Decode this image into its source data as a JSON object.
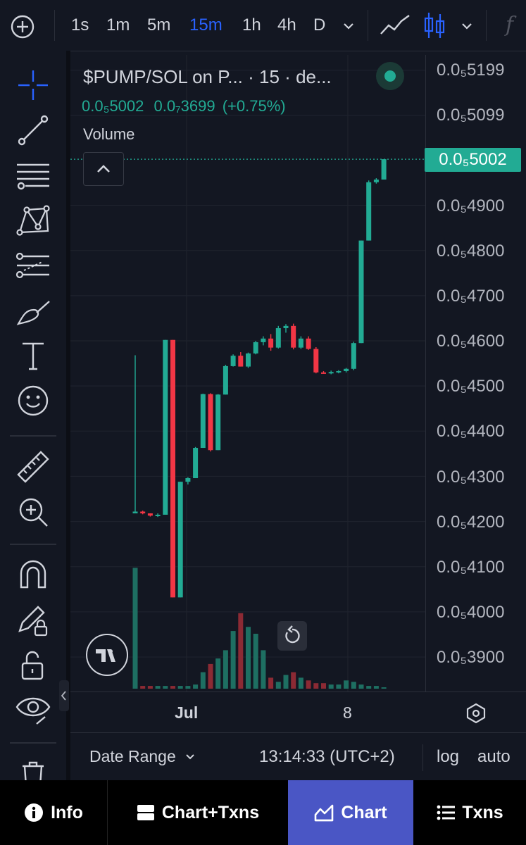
{
  "toolbar": {
    "intervals": [
      "1s",
      "1m",
      "5m",
      "15m",
      "1h",
      "4h",
      "D"
    ],
    "active_interval": "15m",
    "fx_label": "f"
  },
  "legend": {
    "title": "$PUMP/SOL on P...",
    "interval": "15",
    "source": "de...",
    "price": "0.0₅5002",
    "change": "0.0₇3699",
    "change_pct": "(+0.75%)",
    "volume_label": "Volume"
  },
  "price_axis": {
    "labels": [
      "0.0₅5199",
      "0.0₅5099",
      "0.0₅4900",
      "0.0₅4800",
      "0.0₅4700",
      "0.0₅4600",
      "0.0₅4500",
      "0.0₅4400",
      "0.0₅4300",
      "0.0₅4200",
      "0.0₅4100",
      "0.0₅4000",
      "0.0₅3900"
    ],
    "current_price_label": "0.0₅5002"
  },
  "time_axis": {
    "labels": [
      "Jul",
      "8"
    ]
  },
  "bottom_bar": {
    "date_range": "Date Range",
    "time": "13:14:33 (UTC+2)",
    "log": "log",
    "auto": "auto"
  },
  "nav": {
    "info": "Info",
    "chart_txns": "Chart+Txns",
    "chart": "Chart",
    "txns": "Txns"
  },
  "colors": {
    "up": "#22ab94",
    "down": "#f23645",
    "active_tab": "#4a56c5",
    "accent_blue": "#2962ff"
  },
  "chart_data": {
    "type": "candlestick",
    "y_scale": "price",
    "candles": [
      {
        "o": 4218,
        "h": 4568,
        "l": 4218,
        "c": 4222
      },
      {
        "o": 4222,
        "h": 4224,
        "l": 4216,
        "c": 4218
      },
      {
        "o": 4218,
        "h": 4218,
        "l": 4211,
        "c": 4213
      },
      {
        "o": 4213,
        "h": 4218,
        "l": 4210,
        "c": 4215
      },
      {
        "o": 4215,
        "h": 4602,
        "l": 4215,
        "c": 4602
      },
      {
        "o": 4602,
        "h": 4602,
        "l": 4032,
        "c": 4032
      },
      {
        "o": 4032,
        "h": 4288,
        "l": 4032,
        "c": 4288
      },
      {
        "o": 4288,
        "h": 4298,
        "l": 4282,
        "c": 4296
      },
      {
        "o": 4296,
        "h": 4365,
        "l": 4296,
        "c": 4363
      },
      {
        "o": 4363,
        "h": 4483,
        "l": 4363,
        "c": 4482
      },
      {
        "o": 4482,
        "h": 4484,
        "l": 4355,
        "c": 4358
      },
      {
        "o": 4358,
        "h": 4482,
        "l": 4358,
        "c": 4481
      },
      {
        "o": 4481,
        "h": 4547,
        "l": 4481,
        "c": 4544
      },
      {
        "o": 4544,
        "h": 4570,
        "l": 4543,
        "c": 4567
      },
      {
        "o": 4567,
        "h": 4575,
        "l": 4543,
        "c": 4543
      },
      {
        "o": 4543,
        "h": 4574,
        "l": 4540,
        "c": 4572
      },
      {
        "o": 4572,
        "h": 4600,
        "l": 4570,
        "c": 4597
      },
      {
        "o": 4597,
        "h": 4610,
        "l": 4590,
        "c": 4605
      },
      {
        "o": 4605,
        "h": 4615,
        "l": 4578,
        "c": 4585
      },
      {
        "o": 4585,
        "h": 4633,
        "l": 4583,
        "c": 4628
      },
      {
        "o": 4628,
        "h": 4637,
        "l": 4618,
        "c": 4633
      },
      {
        "o": 4633,
        "h": 4638,
        "l": 4581,
        "c": 4585
      },
      {
        "o": 4585,
        "h": 4610,
        "l": 4582,
        "c": 4605
      },
      {
        "o": 4605,
        "h": 4610,
        "l": 4580,
        "c": 4582
      },
      {
        "o": 4582,
        "h": 4586,
        "l": 4528,
        "c": 4530
      },
      {
        "o": 4530,
        "h": 4533,
        "l": 4527,
        "c": 4529
      },
      {
        "o": 4529,
        "h": 4534,
        "l": 4526,
        "c": 4531
      },
      {
        "o": 4531,
        "h": 4535,
        "l": 4528,
        "c": 4533
      },
      {
        "o": 4533,
        "h": 4540,
        "l": 4530,
        "c": 4538
      },
      {
        "o": 4538,
        "h": 4598,
        "l": 4535,
        "c": 4595
      },
      {
        "o": 4595,
        "h": 4822,
        "l": 4595,
        "c": 4822
      },
      {
        "o": 4822,
        "h": 4955,
        "l": 4822,
        "c": 4951
      },
      {
        "o": 4951,
        "h": 4960,
        "l": 4948,
        "c": 4957
      },
      {
        "o": 4957,
        "h": 5002,
        "l": 4957,
        "c": 5002
      }
    ],
    "volume": [
      88,
      2,
      2,
      2,
      2,
      2,
      2,
      2,
      3,
      12,
      18,
      22,
      28,
      42,
      55,
      45,
      40,
      28,
      8,
      5,
      10,
      12,
      8,
      6,
      4,
      4,
      3,
      3,
      6,
      5,
      3,
      2,
      2,
      1
    ]
  }
}
